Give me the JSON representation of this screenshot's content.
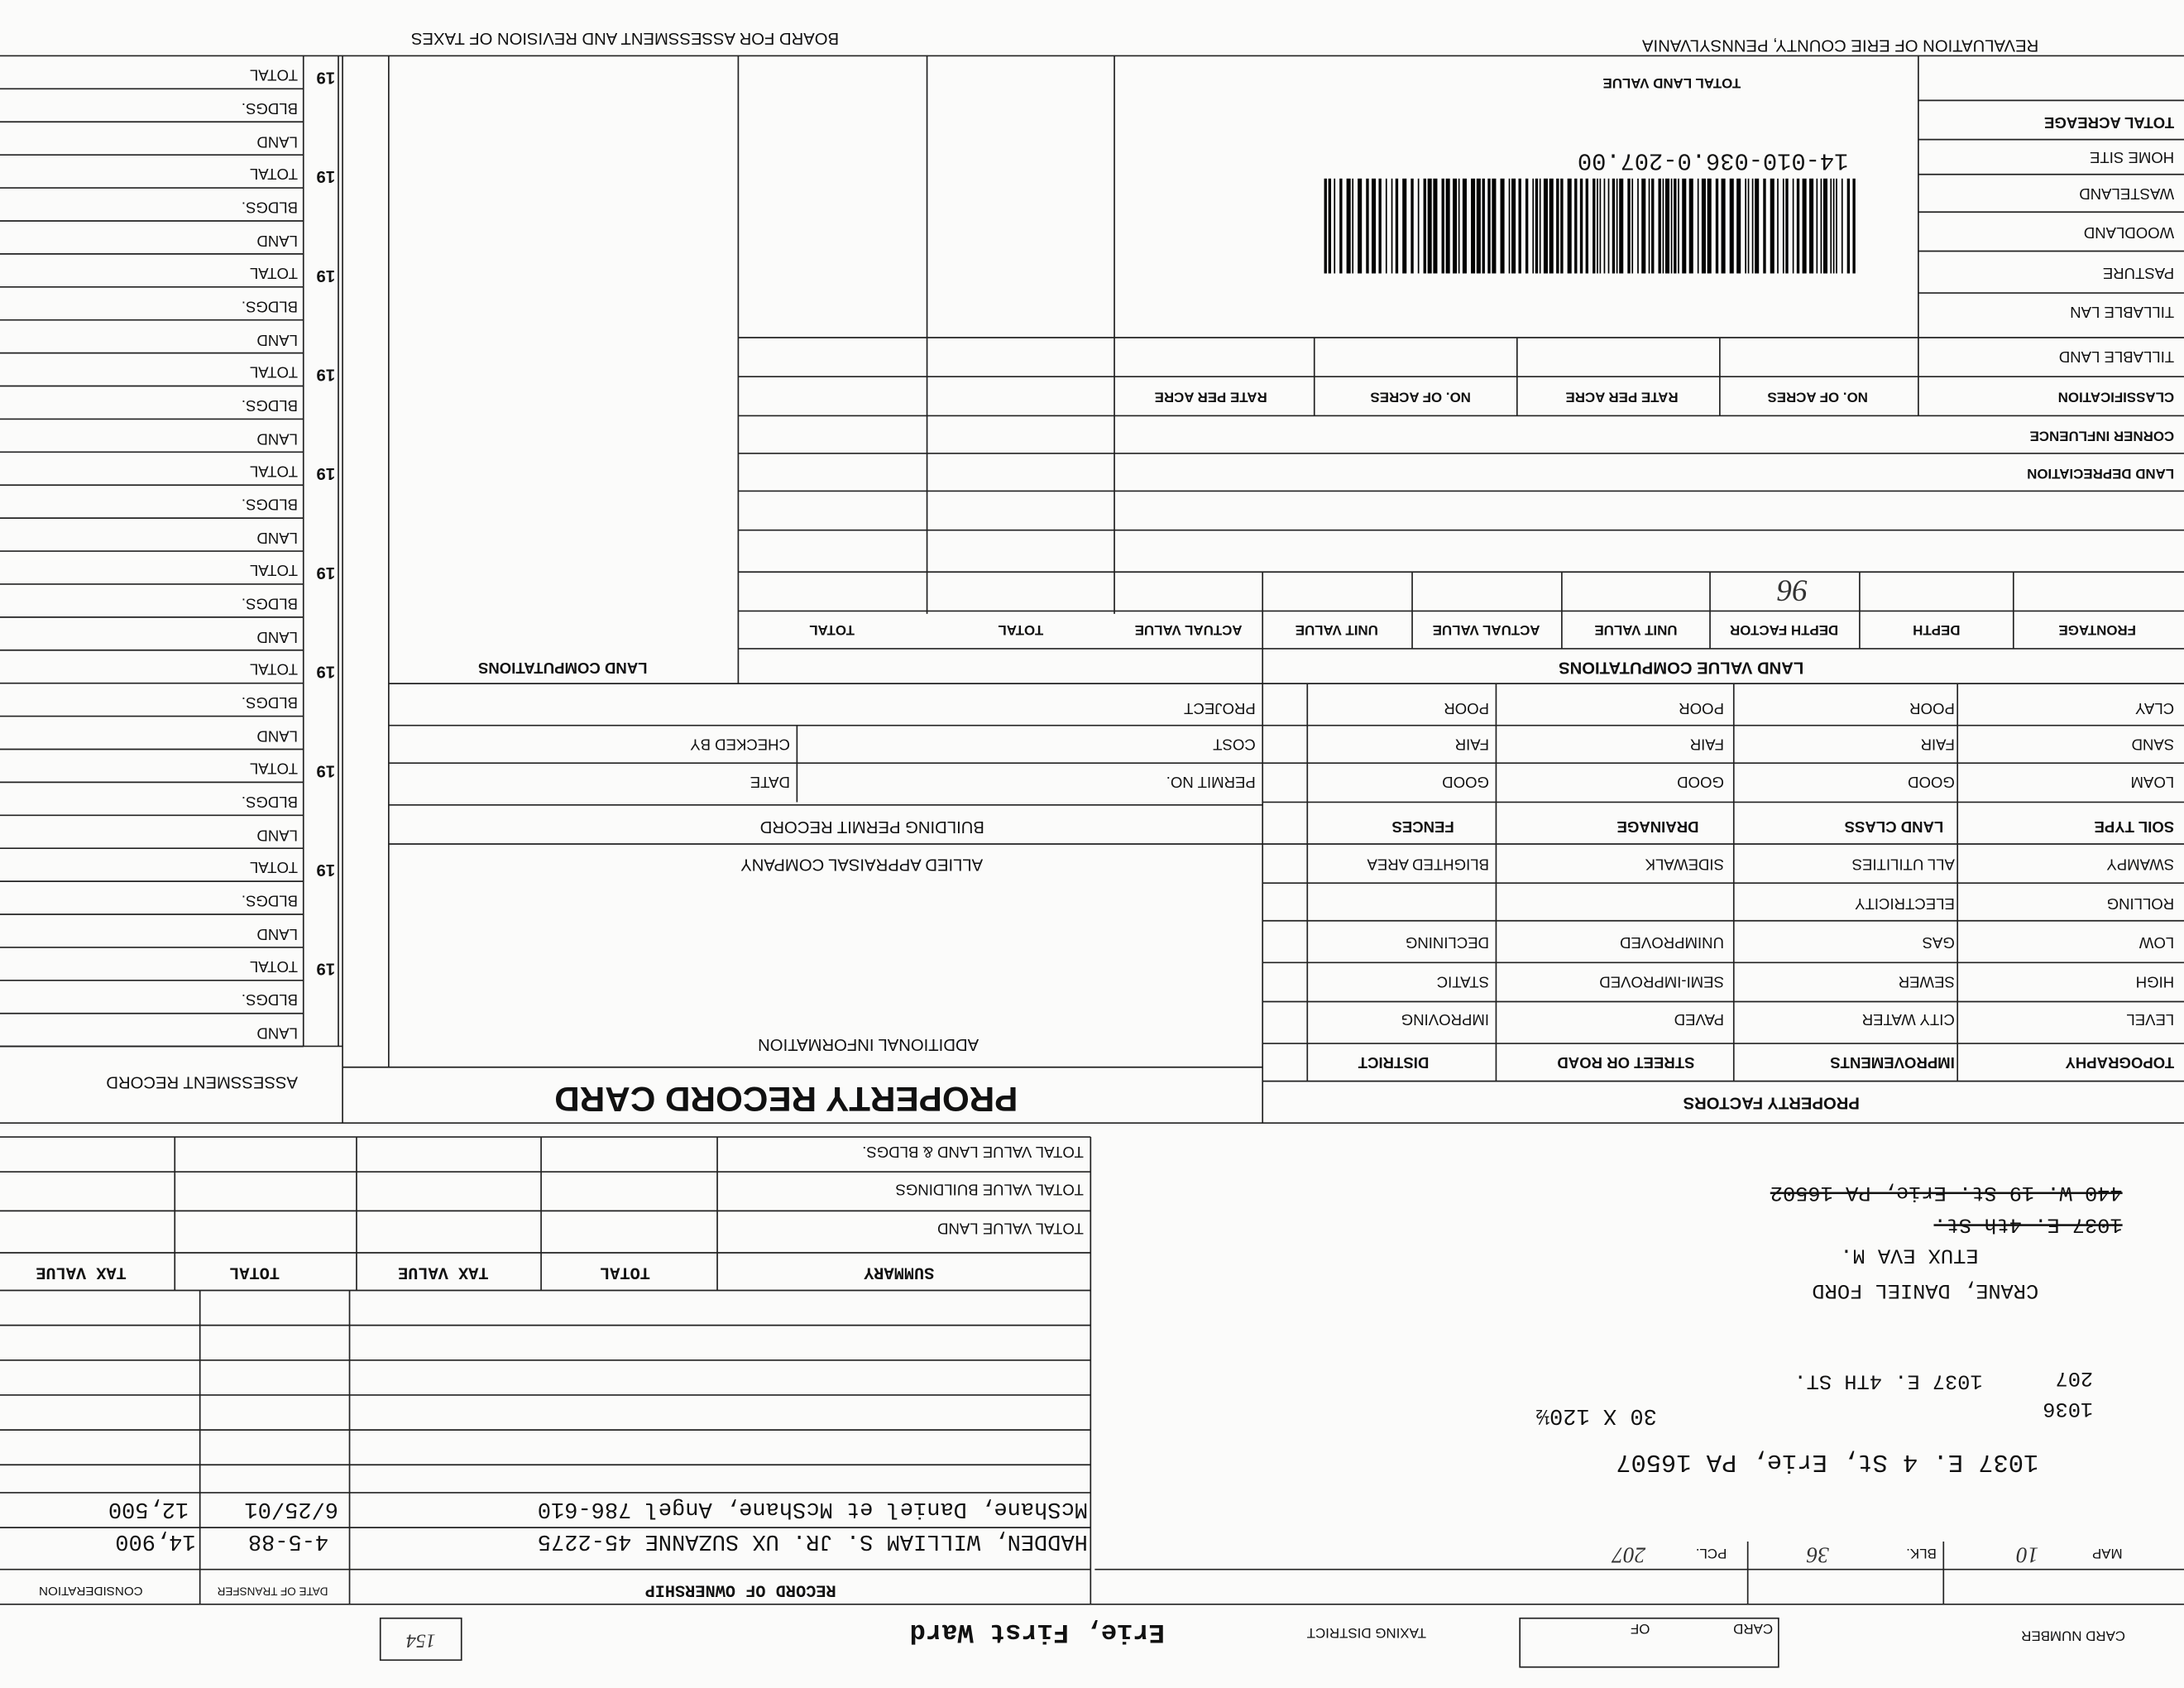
{
  "header": {
    "title_right": "REVALUATION OF ERIE COUNTY, PENNSYLVANIA",
    "title_left": "BOARD FOR ASSESSMENT AND REVISION OF TAXES"
  },
  "assessment_record": {
    "title": "ASSESSMENT RECORD",
    "groups": [
      {
        "year": "19",
        "rows": [
          "LAND",
          "BLDGS.",
          "TOTAL"
        ]
      },
      {
        "year": "19",
        "rows": [
          "LAND",
          "BLDGS.",
          "TOTAL"
        ]
      },
      {
        "year": "19",
        "rows": [
          "LAND",
          "BLDGS.",
          "TOTAL"
        ]
      },
      {
        "year": "19",
        "rows": [
          "LAND",
          "BLDGS.",
          "TOTAL"
        ]
      },
      {
        "year": "19",
        "rows": [
          "LAND",
          "BLDGS.",
          "TOTAL"
        ]
      },
      {
        "year": "19",
        "rows": [
          "LAND",
          "BLDGS.",
          "TOTAL"
        ]
      },
      {
        "year": "19",
        "rows": [
          "LAND",
          "BLDGS.",
          "TOTAL"
        ]
      },
      {
        "year": "19",
        "rows": [
          "LAND",
          "BLDGS.",
          "TOTAL"
        ]
      },
      {
        "year": "19",
        "rows": [
          "LAND",
          "BLDGS.",
          "TOTAL"
        ]
      },
      {
        "year": "19",
        "rows": [
          "LAND",
          "BLDGS.",
          "TOTAL"
        ]
      }
    ]
  },
  "property_record_card": {
    "title": "PROPERTY RECORD CARD",
    "additional_information": "ADDITIONAL INFORMATION",
    "appraiser": "ALLIED APPRAISAL COMPANY",
    "building_permit_record": {
      "title": "BUILDING PERMIT RECORD",
      "fields": [
        "PERMIT NO.",
        "DATE",
        "COST",
        "CHECKED BY",
        "PROJECT"
      ]
    },
    "land_computations": "LAND COMPUTATIONS"
  },
  "property_factors": {
    "title": "PROPERTY FACTORS",
    "columns": [
      "TOPOGRAPHY",
      "IMPROVEMENTS",
      "STREET OR ROAD",
      "DISTRICT"
    ],
    "rows": [
      [
        "LEVEL",
        "CITY WATER",
        "PAVED",
        "IMPROVING"
      ],
      [
        "HIGH",
        "SEWER",
        "SEMI-IMPROVED",
        "STATIC"
      ],
      [
        "LOW",
        "GAS",
        "UNIMPROVED",
        "DECLINING"
      ],
      [
        "ROLLING",
        "ELECTRICITY"
      ],
      [
        "SWAMPY",
        "ALL UTILITIES",
        "SIDEWALK",
        "BLIGHTED AREA"
      ]
    ],
    "soil_header": [
      "SOIL TYPE",
      "LAND CLASS",
      "DRAINAGE",
      "FENCES"
    ],
    "soil_rows": [
      [
        "LOAM",
        "GOOD",
        "GOOD",
        "GOOD"
      ],
      [
        "SAND",
        "FAIR",
        "FAIR",
        "FAIR"
      ],
      [
        "CLAY",
        "POOR",
        "POOR",
        "POOR"
      ]
    ]
  },
  "land_value_computations": {
    "title": "LAND VALUE COMPUTATIONS",
    "columns": [
      "FRONTAGE",
      "DEPTH",
      "DEPTH FACTOR",
      "UNIT VALUE",
      "ACTUAL VALUE",
      "UNIT VALUE",
      "ACTUAL VALUE",
      "TOTAL",
      "TOTAL"
    ],
    "depth_factor_entry": "96",
    "rows": [
      "LAND DEPRECIATION",
      "CORNER INFLUENCE"
    ],
    "classification": {
      "columns": [
        "CLASSIFICATION",
        "NO. OF ACRES",
        "RATE PER ACRE",
        "NO. OF ACRES",
        "RATE PER ACRE"
      ],
      "rows": [
        "TILLABLE LAND",
        "TILLABLE LAN",
        "PASTURE",
        "WOODLAND",
        "WASTELAND",
        "HOME SITE",
        "TOTAL ACREAGE"
      ]
    },
    "total_land_value": "TOTAL LAND VALUE",
    "parcel_barcode": "14-010-036.0-207.00"
  },
  "address": {
    "struck": [
      "440 W. 19 St. Erie, PA 16502",
      "1037 E. 4th St."
    ],
    "owner": [
      "CRANE, DANIEL FORD",
      "ETUX EVA M."
    ],
    "parcel": "207",
    "street": "1037 E. 4TH ST.",
    "lot": "1036",
    "dimensions": "30 X 120½",
    "current_address": "1037 E. 4 St, Erie, PA 16507"
  },
  "summary": {
    "columns": [
      "SUMMARY",
      "TOTAL",
      "TAX VALUE",
      "TOTAL",
      "TAX VALUE"
    ],
    "rows": [
      "TOTAL VALUE LAND",
      "TOTAL VALUE BUILDINGS",
      "TOTAL VALUE LAND & BLDGS."
    ]
  },
  "ownership": {
    "title": "RECORD OF OWNERSHIP",
    "columns": [
      "DATE OF TRANSFER",
      "CONSIDERATION"
    ],
    "entries": [
      {
        "owner": "HADDEN, WILLIAM S. JR. UX SUZANNE 45-2275",
        "date": "4-5-88",
        "consideration": "14,900"
      },
      {
        "owner": "McShane, Daniel et McShane, Angel 786-610",
        "date": "6/25/01",
        "consideration": "12,500"
      }
    ]
  },
  "card": {
    "card_number": "CARD NUMBER",
    "card": "CARD",
    "of": "OF",
    "taxing_district": "TAXING DISTRICT",
    "district_name": "Erie, First Ward",
    "district_code": "154",
    "map_label": "MAP",
    "map": "10",
    "block_label": "BLK.",
    "block": "36",
    "parcel_label": "PCL.",
    "parcel": "207"
  }
}
